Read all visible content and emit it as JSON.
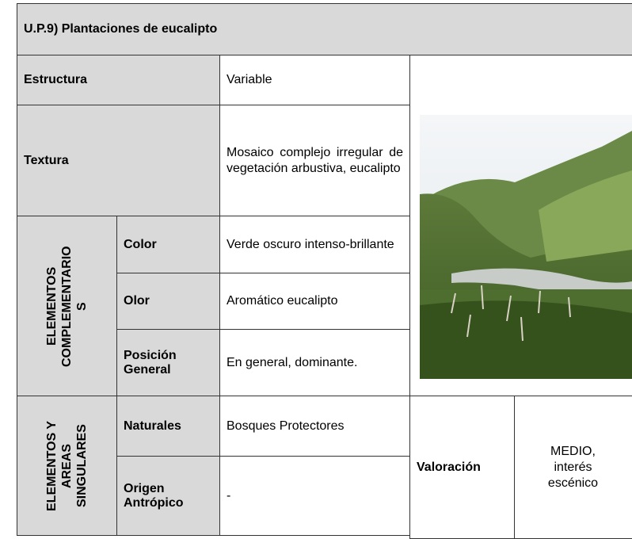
{
  "title": "U.P.9) Plantaciones de eucalipto",
  "rows": [
    {
      "label": "Estructura",
      "value": "Variable"
    },
    {
      "label": "Textura",
      "value": "Mosaico complejo irregular de vegetación arbustiva, eucalipto"
    }
  ],
  "groups": [
    {
      "label": "ELEMENTOS COMPLEMENTARIO S",
      "items": [
        {
          "label": "Color",
          "value": "Verde oscuro intenso-brillante"
        },
        {
          "label": "Olor",
          "value": "Aromático eucalipto"
        },
        {
          "label": "Posición General",
          "value": "En general, dominante."
        }
      ]
    },
    {
      "label": "ELEMENTOS Y AREAS SINGULARES",
      "items": [
        {
          "label": "Naturales",
          "value": "Bosques Protectores"
        },
        {
          "label": "Origen Antrópico",
          "value": "-"
        }
      ]
    }
  ],
  "assessment": {
    "label": "Valoración",
    "value": "MEDIO, interés escénico"
  }
}
